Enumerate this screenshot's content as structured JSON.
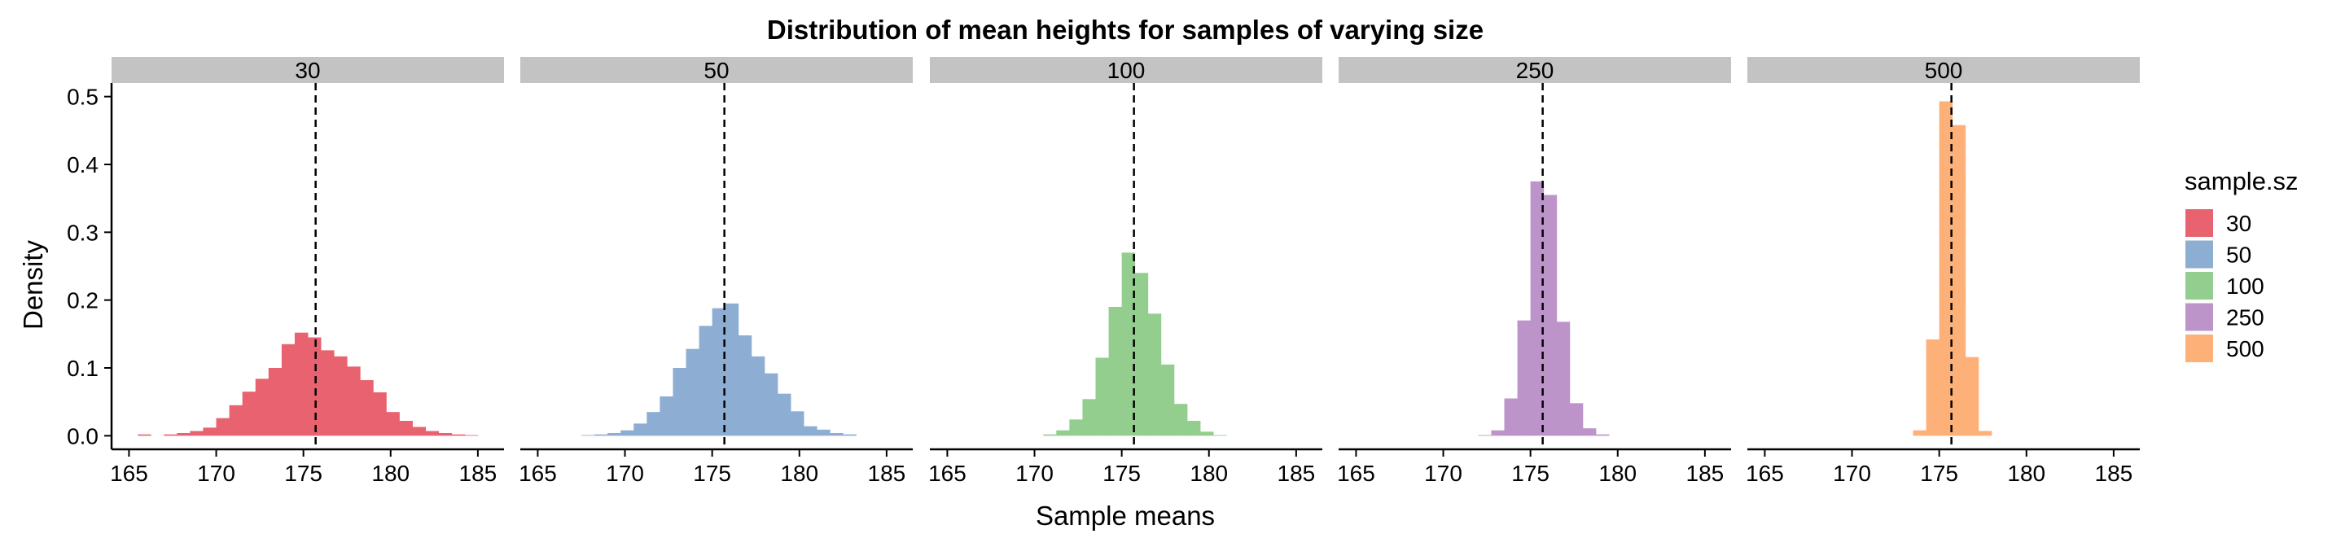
{
  "chart_data": {
    "type": "histogram-facets",
    "title": "Distribution of mean heights for samples of varying size",
    "xlabel": "Sample means",
    "ylabel": "Density",
    "xlim": [
      164,
      186.5
    ],
    "ylim": [
      -0.02,
      0.52
    ],
    "x_ticks": [
      165,
      170,
      175,
      180,
      185
    ],
    "y_ticks": [
      0.0,
      0.1,
      0.2,
      0.3,
      0.4,
      0.5
    ],
    "y_tick_labels": [
      "0.0",
      "0.1",
      "0.2",
      "0.3",
      "0.4",
      "0.5"
    ],
    "bin_width": 0.75,
    "reference_line_x": 175.7,
    "reference_line_style": "dashed",
    "legend_title": "sample.sz",
    "legend_position": "right",
    "grid": false,
    "facets": [
      {
        "name": "30",
        "color": "#E8636F",
        "bins": [
          {
            "x0": 165.5,
            "y": 0.002
          },
          {
            "x0": 167.0,
            "y": 0.002
          },
          {
            "x0": 167.75,
            "y": 0.004
          },
          {
            "x0": 168.5,
            "y": 0.007
          },
          {
            "x0": 169.25,
            "y": 0.012
          },
          {
            "x0": 170.0,
            "y": 0.026
          },
          {
            "x0": 170.75,
            "y": 0.045
          },
          {
            "x0": 171.5,
            "y": 0.065
          },
          {
            "x0": 172.25,
            "y": 0.084
          },
          {
            "x0": 173.0,
            "y": 0.1
          },
          {
            "x0": 173.75,
            "y": 0.135
          },
          {
            "x0": 174.5,
            "y": 0.152
          },
          {
            "x0": 175.25,
            "y": 0.145
          },
          {
            "x0": 176.0,
            "y": 0.126
          },
          {
            "x0": 176.75,
            "y": 0.117
          },
          {
            "x0": 177.5,
            "y": 0.102
          },
          {
            "x0": 178.25,
            "y": 0.082
          },
          {
            "x0": 179.0,
            "y": 0.064
          },
          {
            "x0": 179.75,
            "y": 0.035
          },
          {
            "x0": 180.5,
            "y": 0.022
          },
          {
            "x0": 181.25,
            "y": 0.013
          },
          {
            "x0": 182.0,
            "y": 0.007
          },
          {
            "x0": 182.75,
            "y": 0.004
          },
          {
            "x0": 183.5,
            "y": 0.002
          },
          {
            "x0": 184.25,
            "y": 0.001
          }
        ]
      },
      {
        "name": "50",
        "color": "#8DAED2",
        "bins": [
          {
            "x0": 167.5,
            "y": 0.001
          },
          {
            "x0": 168.25,
            "y": 0.002
          },
          {
            "x0": 169.0,
            "y": 0.004
          },
          {
            "x0": 169.75,
            "y": 0.008
          },
          {
            "x0": 170.5,
            "y": 0.018
          },
          {
            "x0": 171.25,
            "y": 0.035
          },
          {
            "x0": 172.0,
            "y": 0.058
          },
          {
            "x0": 172.75,
            "y": 0.1
          },
          {
            "x0": 173.5,
            "y": 0.128
          },
          {
            "x0": 174.25,
            "y": 0.162
          },
          {
            "x0": 175.0,
            "y": 0.188
          },
          {
            "x0": 175.75,
            "y": 0.195
          },
          {
            "x0": 176.5,
            "y": 0.148
          },
          {
            "x0": 177.25,
            "y": 0.117
          },
          {
            "x0": 178.0,
            "y": 0.092
          },
          {
            "x0": 178.75,
            "y": 0.062
          },
          {
            "x0": 179.5,
            "y": 0.036
          },
          {
            "x0": 180.25,
            "y": 0.014
          },
          {
            "x0": 181.0,
            "y": 0.009
          },
          {
            "x0": 181.75,
            "y": 0.004
          },
          {
            "x0": 182.5,
            "y": 0.002
          }
        ]
      },
      {
        "name": "100",
        "color": "#93CE8F",
        "bins": [
          {
            "x0": 170.5,
            "y": 0.002
          },
          {
            "x0": 171.25,
            "y": 0.008
          },
          {
            "x0": 172.0,
            "y": 0.024
          },
          {
            "x0": 172.75,
            "y": 0.054
          },
          {
            "x0": 173.5,
            "y": 0.115
          },
          {
            "x0": 174.25,
            "y": 0.19
          },
          {
            "x0": 175.0,
            "y": 0.27
          },
          {
            "x0": 175.75,
            "y": 0.24
          },
          {
            "x0": 176.5,
            "y": 0.18
          },
          {
            "x0": 177.25,
            "y": 0.105
          },
          {
            "x0": 178.0,
            "y": 0.047
          },
          {
            "x0": 178.75,
            "y": 0.022
          },
          {
            "x0": 179.5,
            "y": 0.006
          },
          {
            "x0": 180.25,
            "y": 0.001
          }
        ]
      },
      {
        "name": "250",
        "color": "#BC94C9",
        "bins": [
          {
            "x0": 172.0,
            "y": 0.001
          },
          {
            "x0": 172.75,
            "y": 0.008
          },
          {
            "x0": 173.5,
            "y": 0.055
          },
          {
            "x0": 174.25,
            "y": 0.17
          },
          {
            "x0": 175.0,
            "y": 0.375
          },
          {
            "x0": 175.75,
            "y": 0.355
          },
          {
            "x0": 176.5,
            "y": 0.168
          },
          {
            "x0": 177.25,
            "y": 0.048
          },
          {
            "x0": 178.0,
            "y": 0.011
          },
          {
            "x0": 178.75,
            "y": 0.002
          }
        ]
      },
      {
        "name": "500",
        "color": "#FDB078",
        "bins": [
          {
            "x0": 173.5,
            "y": 0.008
          },
          {
            "x0": 174.25,
            "y": 0.142
          },
          {
            "x0": 175.0,
            "y": 0.493
          },
          {
            "x0": 175.75,
            "y": 0.458
          },
          {
            "x0": 176.5,
            "y": 0.116
          },
          {
            "x0": 177.25,
            "y": 0.007
          }
        ]
      }
    ]
  }
}
